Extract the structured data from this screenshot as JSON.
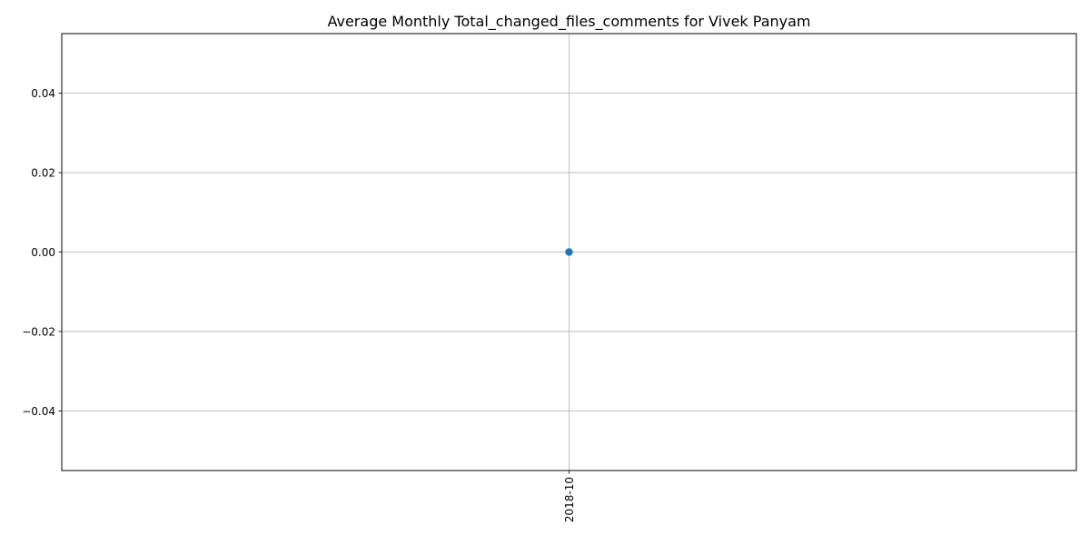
{
  "chart_data": {
    "type": "line",
    "title": "Average Monthly Total_changed_files_comments for Vivek Panyam",
    "xlabel": "",
    "ylabel": "",
    "categories": [
      "2018-10"
    ],
    "series": [
      {
        "values": [
          0.0
        ],
        "color": "#1f77b4",
        "marker": "circle"
      }
    ],
    "ylim": [
      -0.055,
      0.055
    ],
    "yticks": [
      -0.04,
      -0.02,
      0.0,
      0.02,
      0.04
    ],
    "ytick_labels": [
      "−0.04",
      "−0.02",
      "0.00",
      "0.02",
      "0.04"
    ],
    "x_tick_rotation": "vertical",
    "grid": true,
    "legend": "none"
  }
}
